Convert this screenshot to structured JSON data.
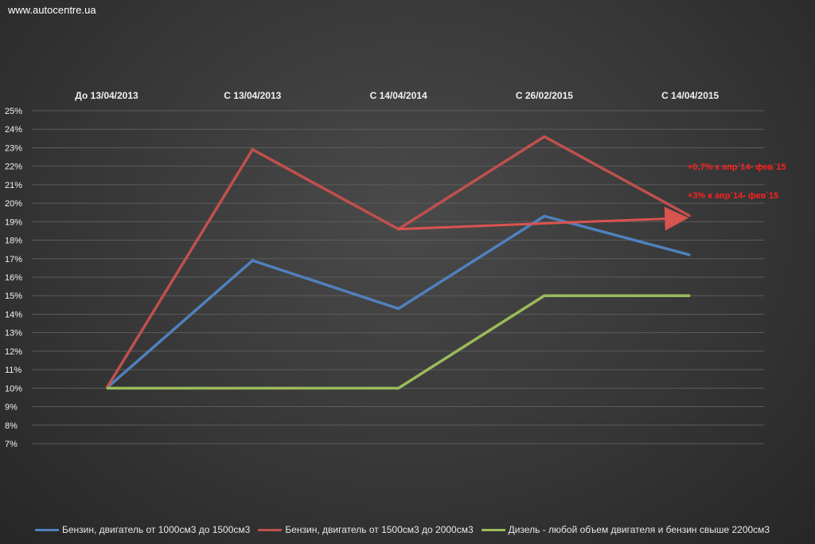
{
  "watermark": "www.autocentre.ua",
  "chart_data": {
    "type": "line",
    "categories": [
      "До 13/04/2013",
      "С 13/04/2013",
      "С 14/04/2014",
      "С 26/02/2015",
      "С 14/04/2015"
    ],
    "ylim": [
      7,
      25
    ],
    "y_ticks": [
      "7%",
      "8%",
      "9%",
      "10%",
      "11%",
      "12%",
      "13%",
      "14%",
      "15%",
      "16%",
      "17%",
      "18%",
      "19%",
      "20%",
      "21%",
      "22%",
      "23%",
      "24%",
      "25%"
    ],
    "grid": true,
    "legend_position": "bottom",
    "series": [
      {
        "name": "Бензин, двигатель от 1000см3  до 1500см3",
        "color": "#4f81bd",
        "values": [
          10,
          16.9,
          14.3,
          19.3,
          17.2
        ]
      },
      {
        "name": "Бензин, двигатель от 1500см3  до 2000см3",
        "color": "#c0504d",
        "values": [
          10,
          22.9,
          18.6,
          23.6,
          19.3
        ]
      },
      {
        "name": "Дизель - любой объем двигателя и бензин свыше 2200см3",
        "color": "#9bbb59",
        "values": [
          10,
          10,
          10,
          15,
          15
        ]
      }
    ],
    "annotations": [
      {
        "text": "+0,7% к апр`14- фев`15",
        "color": "#ff2020"
      },
      {
        "text": "+3% к апр`14- фев`15",
        "color": "#ff2020"
      }
    ],
    "arrow": {
      "from": {
        "category": "С 14/04/2014",
        "y": 18.6
      },
      "to": {
        "category": "С 14/04/2015",
        "y": 19.2
      },
      "color": "#d9534f"
    }
  }
}
